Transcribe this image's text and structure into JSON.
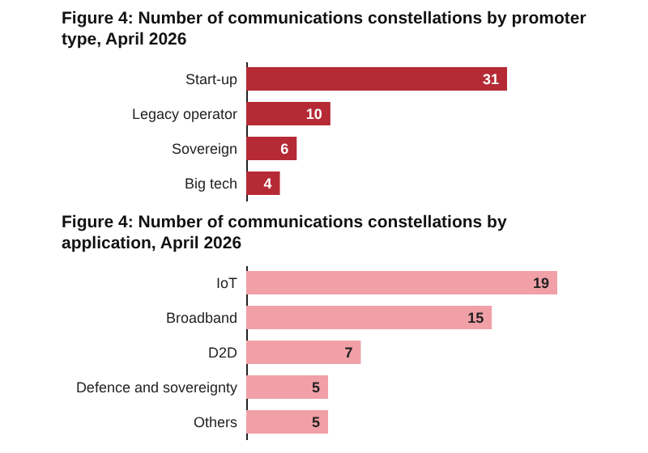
{
  "chart_data": [
    {
      "type": "bar",
      "orientation": "horizontal",
      "title": "Figure 4: Number of communications constellations by promoter type, April 2026",
      "categories": [
        "Start-up",
        "Legacy operator",
        "Sovereign",
        "Big tech"
      ],
      "values": [
        31,
        10,
        6,
        4
      ],
      "color": "#b52a35",
      "data_labels": true
    },
    {
      "type": "bar",
      "orientation": "horizontal",
      "title": "Figure 4: Number of communications constellations by application, April 2026",
      "categories": [
        "IoT",
        "Broadband",
        "D2D",
        "Defence and sovereignty",
        "Others"
      ],
      "values": [
        19,
        15,
        7,
        5,
        5
      ],
      "color": "#f0a0a6",
      "data_labels": true
    }
  ]
}
